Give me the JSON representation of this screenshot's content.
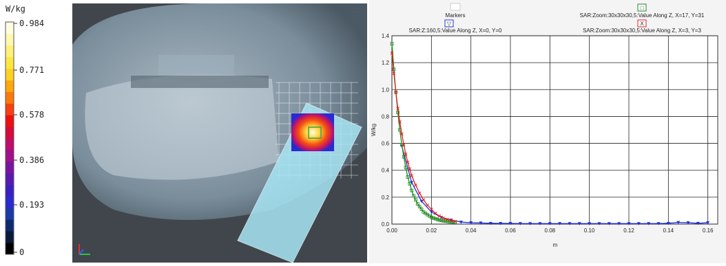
{
  "colorbar": {
    "unit": "W/kg",
    "ticks": [
      "0.984",
      "0.771",
      "0.578",
      "0.386",
      "0.193",
      "0"
    ],
    "colors": [
      "#000000",
      "#0a1a3a",
      "#0d2a6e",
      "#1a3aa8",
      "#2a2ad0",
      "#3a20c0",
      "#5a1ab0",
      "#7a14a0",
      "#a0108a",
      "#c00c6a",
      "#d80a3a",
      "#ee1010",
      "#f84010",
      "#fc7a08",
      "#fea80a",
      "#fed020",
      "#fee640",
      "#fff07a",
      "#fff8b0",
      "#fffde0"
    ]
  },
  "chart_data": {
    "type": "line",
    "xlabel": "m",
    "ylabel": "W/kg",
    "xlim": [
      0,
      0.165
    ],
    "ylim": [
      0,
      1.4
    ],
    "xticks": [
      "0.00",
      "0.02",
      "0.04",
      "0.06",
      "0.08",
      "0.10",
      "0.12",
      "0.14",
      "0.16"
    ],
    "yticks": [
      "0.0",
      "0.2",
      "0.4",
      "0.6",
      "0.8",
      "1.0",
      "1.2",
      "1.4"
    ],
    "grid": true,
    "legend": {
      "markers_label": "Markers",
      "entries": [
        {
          "symbol": "▽",
          "label": "SAR:Z:160,5:Value Along Z, X=0, Y=0",
          "color": "#2030e0"
        },
        {
          "symbol": "□",
          "label": "SAR:Zoom:30x30x30,5:Value Along Z, X=17, Y=31",
          "color": "#1a8a1a"
        },
        {
          "symbol": "X",
          "label": "SAR:Zoom:30x30x30,5:Value Along Z, X=3, Y=3",
          "color": "#e02020"
        }
      ]
    },
    "series": [
      {
        "name": "SAR:Z:160,5:Value Along Z, X=0, Y=0",
        "color": "#2030e0",
        "marker": "triangle",
        "x": [
          0.005,
          0.01,
          0.015,
          0.02,
          0.025,
          0.03,
          0.035,
          0.04,
          0.045,
          0.05,
          0.055,
          0.06,
          0.065,
          0.07,
          0.075,
          0.08,
          0.085,
          0.09,
          0.095,
          0.1,
          0.105,
          0.11,
          0.115,
          0.12,
          0.125,
          0.13,
          0.135,
          0.14,
          0.145,
          0.15,
          0.155,
          0.16
        ],
        "y": [
          0.58,
          0.31,
          0.17,
          0.09,
          0.05,
          0.03,
          0.015,
          0.01,
          0.008,
          0.006,
          0.005,
          0.005,
          0.004,
          0.004,
          0.004,
          0.004,
          0.004,
          0.004,
          0.004,
          0.004,
          0.004,
          0.004,
          0.004,
          0.004,
          0.004,
          0.004,
          0.004,
          0.006,
          0.012,
          0.01,
          0.006,
          0.01
        ]
      },
      {
        "name": "SAR:Zoom:30x30x30,5:Value Along Z, X=17, Y=31",
        "color": "#1a8a1a",
        "marker": "square",
        "x": [
          0.0,
          0.001,
          0.002,
          0.003,
          0.004,
          0.005,
          0.006,
          0.007,
          0.008,
          0.009,
          0.01,
          0.011,
          0.012,
          0.013,
          0.014,
          0.015,
          0.016,
          0.017,
          0.018,
          0.019,
          0.02,
          0.021,
          0.022,
          0.023,
          0.024,
          0.025,
          0.026,
          0.027,
          0.028,
          0.029,
          0.03,
          0.031,
          0.032
        ],
        "y": [
          1.34,
          1.15,
          0.98,
          0.83,
          0.7,
          0.59,
          0.5,
          0.42,
          0.35,
          0.3,
          0.25,
          0.21,
          0.18,
          0.15,
          0.13,
          0.11,
          0.09,
          0.08,
          0.07,
          0.06,
          0.05,
          0.045,
          0.04,
          0.035,
          0.03,
          0.027,
          0.024,
          0.022,
          0.02,
          0.018,
          0.016,
          0.015,
          0.014
        ]
      },
      {
        "name": "SAR:Zoom:30x30x30,5:Value Along Z, X=3, Y=3",
        "color": "#e02020",
        "marker": "x",
        "x": [
          0.0,
          0.001,
          0.002,
          0.003,
          0.004,
          0.005,
          0.006,
          0.007,
          0.008,
          0.009,
          0.01,
          0.012,
          0.014,
          0.016,
          0.018,
          0.02,
          0.022,
          0.024,
          0.026,
          0.028,
          0.03,
          0.032
        ],
        "y": [
          1.27,
          1.12,
          0.98,
          0.86,
          0.76,
          0.67,
          0.59,
          0.52,
          0.46,
          0.41,
          0.36,
          0.29,
          0.23,
          0.18,
          0.14,
          0.11,
          0.08,
          0.06,
          0.045,
          0.035,
          0.028,
          0.02
        ]
      }
    ]
  }
}
